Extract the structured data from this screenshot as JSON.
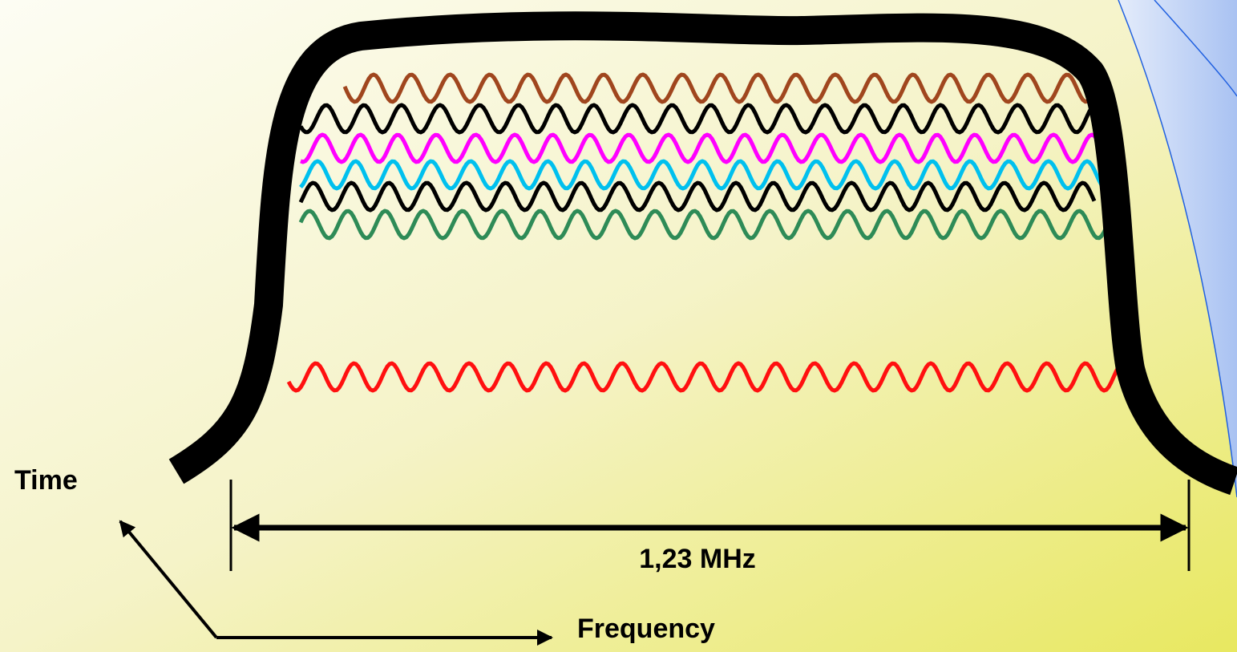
{
  "labels": {
    "time": "Time",
    "bandwidth": "1,23 MHz",
    "frequency": "Frequency"
  }
}
